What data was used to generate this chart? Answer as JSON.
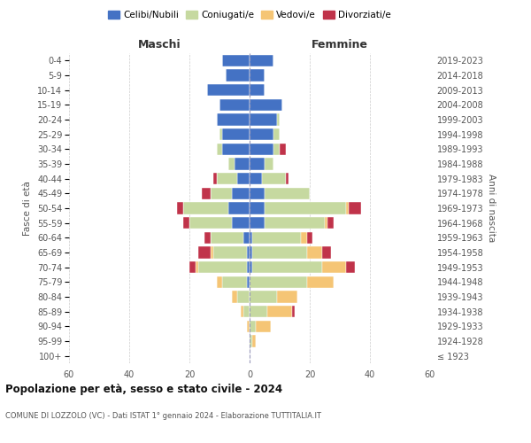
{
  "age_groups": [
    "100+",
    "95-99",
    "90-94",
    "85-89",
    "80-84",
    "75-79",
    "70-74",
    "65-69",
    "60-64",
    "55-59",
    "50-54",
    "45-49",
    "40-44",
    "35-39",
    "30-34",
    "25-29",
    "20-24",
    "15-19",
    "10-14",
    "5-9",
    "0-4"
  ],
  "birth_years": [
    "≤ 1923",
    "1924-1928",
    "1929-1933",
    "1934-1938",
    "1939-1943",
    "1944-1948",
    "1949-1953",
    "1954-1958",
    "1959-1963",
    "1964-1968",
    "1969-1973",
    "1974-1978",
    "1979-1983",
    "1984-1988",
    "1989-1993",
    "1994-1998",
    "1999-2003",
    "2004-2008",
    "2009-2013",
    "2014-2018",
    "2019-2023"
  ],
  "colors": {
    "celibi": "#4472C4",
    "coniugati": "#C6D9A0",
    "vedovi": "#F5C575",
    "divorziati": "#C0334A"
  },
  "maschi": {
    "celibi": [
      0,
      0,
      0,
      0,
      0,
      1,
      1,
      1,
      2,
      6,
      7,
      6,
      4,
      5,
      9,
      9,
      11,
      10,
      14,
      8,
      9
    ],
    "coniugati": [
      0,
      0,
      0,
      2,
      4,
      8,
      16,
      11,
      11,
      14,
      15,
      7,
      7,
      2,
      2,
      1,
      0,
      0,
      0,
      0,
      0
    ],
    "vedovi": [
      0,
      0,
      1,
      1,
      2,
      2,
      1,
      1,
      0,
      0,
      0,
      0,
      0,
      0,
      0,
      0,
      0,
      0,
      0,
      0,
      0
    ],
    "divorziati": [
      0,
      0,
      0,
      0,
      0,
      0,
      2,
      4,
      2,
      2,
      2,
      3,
      1,
      0,
      0,
      0,
      0,
      0,
      0,
      0,
      0
    ]
  },
  "femmine": {
    "celibi": [
      0,
      0,
      0,
      0,
      0,
      0,
      1,
      1,
      1,
      5,
      5,
      5,
      4,
      5,
      8,
      8,
      9,
      11,
      5,
      5,
      8
    ],
    "coniugati": [
      0,
      1,
      2,
      6,
      9,
      19,
      23,
      18,
      16,
      20,
      27,
      15,
      8,
      3,
      2,
      2,
      1,
      0,
      0,
      0,
      0
    ],
    "vedovi": [
      0,
      1,
      5,
      8,
      7,
      9,
      8,
      5,
      2,
      1,
      1,
      0,
      0,
      0,
      0,
      0,
      0,
      0,
      0,
      0,
      0
    ],
    "divorziati": [
      0,
      0,
      0,
      1,
      0,
      0,
      3,
      3,
      2,
      2,
      4,
      0,
      1,
      0,
      2,
      0,
      0,
      0,
      0,
      0,
      0
    ]
  },
  "title": "Popolazione per età, sesso e stato civile - 2024",
  "subtitle": "COMUNE DI LOZZOLO (VC) - Dati ISTAT 1° gennaio 2024 - Elaborazione TUTTITALIA.IT",
  "legend_labels": [
    "Celibi/Nubili",
    "Coniugati/e",
    "Vedovi/e",
    "Divorziati/e"
  ],
  "xlim": 60,
  "background_color": "#ffffff",
  "grid_color": "#cccccc"
}
